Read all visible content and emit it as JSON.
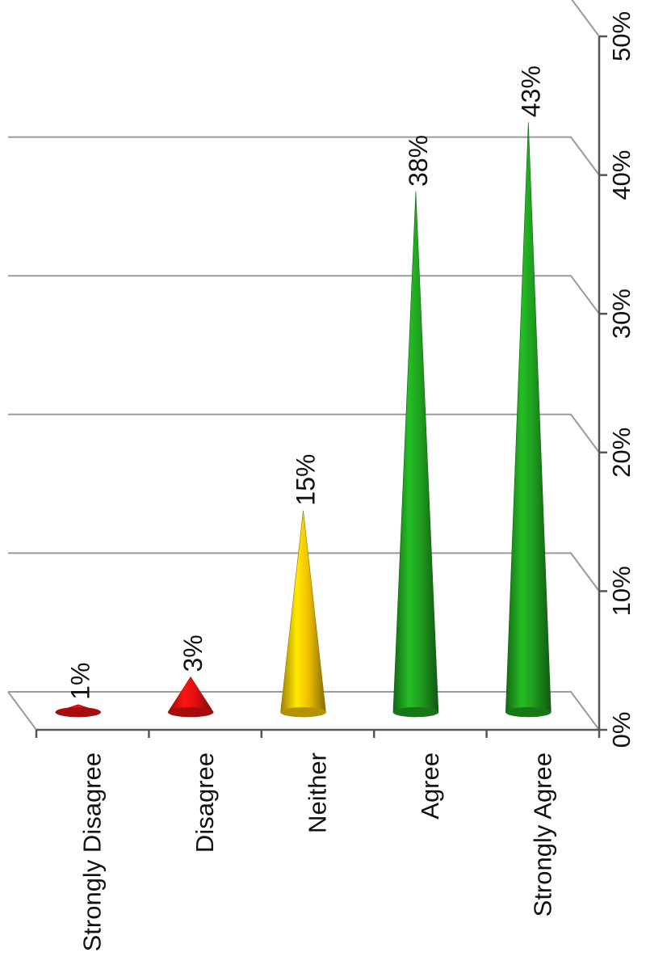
{
  "chart_data": {
    "type": "bar",
    "style": "3d-cone",
    "orientation": "rotated-90",
    "categories": [
      "Strongly Disagree",
      "Disagree",
      "Neither",
      "Agree",
      "Strongly Agree"
    ],
    "values": [
      1,
      3,
      15,
      38,
      43
    ],
    "value_labels": [
      "1%",
      "3%",
      "15%",
      "38%",
      "43%"
    ],
    "colors": [
      "#e01010",
      "#e01010",
      "#f2c200",
      "#1f9e1f",
      "#1f9e1f"
    ],
    "ylim": [
      0,
      50
    ],
    "yticks": [
      0,
      10,
      20,
      30,
      40,
      50
    ],
    "ytick_labels": [
      "0%",
      "10%",
      "20%",
      "30%",
      "40%",
      "50%"
    ],
    "grid": true,
    "legend": "none",
    "title": "",
    "xlabel": "",
    "ylabel": ""
  }
}
